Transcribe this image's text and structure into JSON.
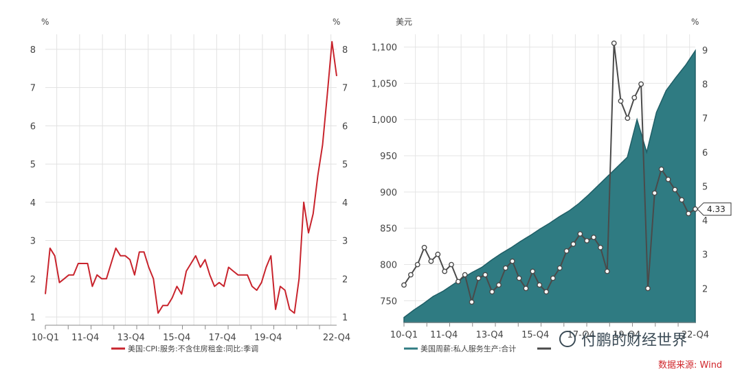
{
  "chart_data": [
    {
      "type": "line",
      "title": "",
      "xlabel": "",
      "ylabel": "",
      "y_unit_left": "%",
      "y_unit_right": "%",
      "ylim": [
        1,
        8.5
      ],
      "y_ticks": [
        1,
        2,
        3,
        4,
        5,
        6,
        7,
        8
      ],
      "x_tick_labels": [
        "10-Q1",
        "11-Q4",
        "13-Q4",
        "15-Q4",
        "17-Q4",
        "19-Q4",
        "22-Q4"
      ],
      "x_tick_positions": [
        0,
        7,
        15,
        23,
        31,
        39,
        51
      ],
      "grid": true,
      "legend_position": "bottom",
      "colors": {
        "series": "#c8232c",
        "grid": "#e1e1e1",
        "axis": "#888888"
      },
      "series": [
        {
          "name": "美国:CPI:服务:不含住房租金:同比:季调",
          "values": [
            1.6,
            2.8,
            2.6,
            1.9,
            2.0,
            2.1,
            2.1,
            2.4,
            2.4,
            2.4,
            1.8,
            2.1,
            2.0,
            2.0,
            2.4,
            2.8,
            2.6,
            2.6,
            2.5,
            2.1,
            2.7,
            2.7,
            2.3,
            2.0,
            1.1,
            1.3,
            1.3,
            1.5,
            1.8,
            1.6,
            2.2,
            2.4,
            2.6,
            2.3,
            2.5,
            2.1,
            1.8,
            1.9,
            1.8,
            2.3,
            2.2,
            2.1,
            2.1,
            2.1,
            1.8,
            1.7,
            1.9,
            2.3,
            2.6,
            1.2,
            1.8,
            1.7,
            1.2,
            1.1,
            2.0,
            4.0,
            3.2,
            3.7,
            4.7,
            5.5,
            6.8,
            8.2,
            7.3
          ]
        }
      ]
    },
    {
      "type": "area",
      "title": "",
      "xlabel": "",
      "ylabel": "",
      "y_unit_left": "美元",
      "y_unit_right": "%",
      "ylim_left": [
        720,
        1110
      ],
      "y_ticks_left": [
        750,
        800,
        850,
        900,
        950,
        1000,
        1050,
        1100
      ],
      "y_ticks_left_labels": [
        "750",
        "800",
        "850",
        "900",
        "950",
        "1,000",
        "1,050",
        "1,100"
      ],
      "ylim_right": [
        1,
        9.3
      ],
      "y_ticks_right": [
        2,
        3,
        4,
        5,
        6,
        7,
        8,
        9
      ],
      "x_tick_labels": [
        "10-Q1",
        "11-Q4",
        "13-Q4",
        "15-Q4",
        "17-Q4",
        "19-Q4",
        "22-Q4"
      ],
      "x_tick_positions": [
        0,
        7,
        15,
        23,
        31,
        39,
        51
      ],
      "grid": true,
      "legend_position": "bottom",
      "colors": {
        "area": "#2f7b82",
        "area_top": "#1f5e66",
        "line": "#4a4a4a",
        "marker_fill": "#ffffff"
      },
      "series": [
        {
          "name": "美国周薪:私人服务生产:合计",
          "axis": "left",
          "type": "area",
          "values": [
            727,
            737,
            746,
            756,
            763,
            772,
            781,
            789,
            796,
            806,
            815,
            823,
            832,
            840,
            849,
            857,
            866,
            874,
            884,
            896,
            909,
            922,
            935,
            948,
            1000,
            955,
            1010,
            1040,
            1058,
            1075,
            1095
          ]
        },
        {
          "name": "",
          "axis": "right",
          "type": "line",
          "values": [
            2.1,
            2.4,
            2.7,
            3.2,
            2.8,
            3.0,
            2.5,
            2.7,
            2.2,
            2.4,
            1.6,
            2.3,
            2.4,
            1.9,
            2.1,
            2.6,
            2.8,
            2.3,
            2.0,
            2.5,
            2.1,
            1.9,
            2.3,
            2.6,
            3.1,
            3.3,
            3.6,
            3.4,
            3.5,
            3.2,
            2.5,
            9.2,
            7.5,
            7.0,
            7.6,
            8.0,
            2.0,
            4.8,
            5.5,
            5.2,
            4.9,
            4.6,
            4.2,
            4.33
          ],
          "end_label": "4.33"
        }
      ]
    }
  ],
  "source_label": "数据来源: Wind",
  "watermark_text": "付鹏的财经世界"
}
